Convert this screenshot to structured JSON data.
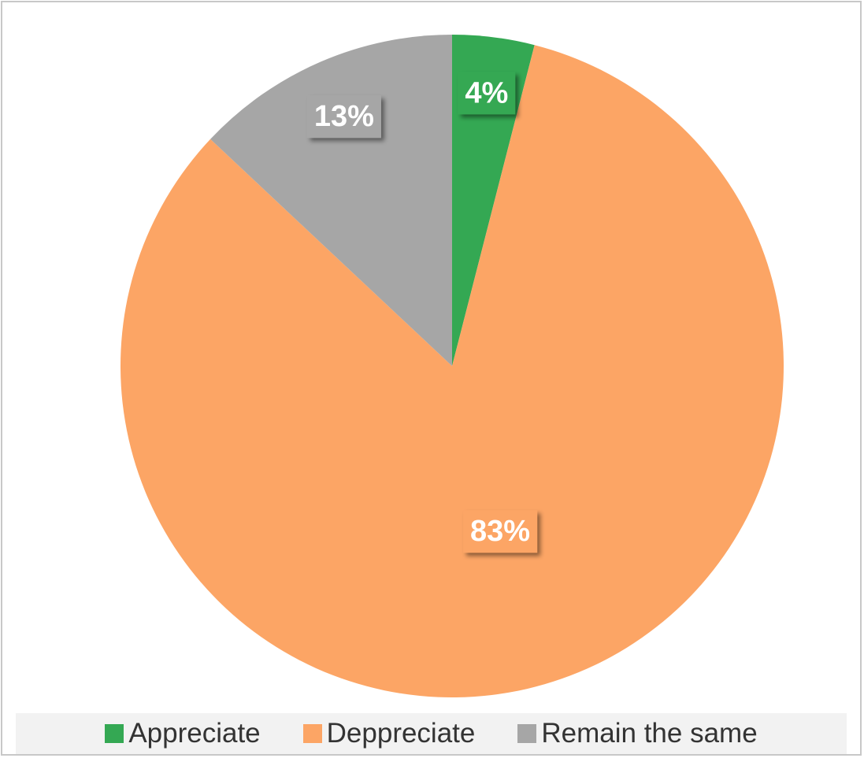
{
  "chart_data": {
    "type": "pie",
    "slices": [
      {
        "name": "Appreciate",
        "value": 4,
        "label": "4%",
        "color": "#34a853"
      },
      {
        "name": "Deppreciate",
        "value": 83,
        "label": "83%",
        "color": "#fca565"
      },
      {
        "name": "Remain the same",
        "value": 13,
        "label": "13%",
        "color": "#a6a6a6"
      }
    ],
    "legend_position": "bottom",
    "data_labels": "percentage"
  }
}
